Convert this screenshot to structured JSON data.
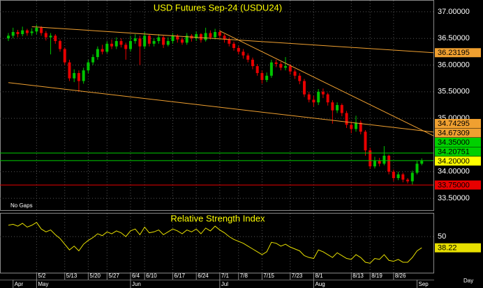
{
  "chart_data": [
    {
      "type": "candlestick",
      "title": "USD Futures Sep-24 (USDU24)",
      "note": "No Gaps",
      "x_unit": "Day",
      "categories": [
        null,
        null,
        null,
        null,
        null,
        null,
        "5/2",
        null,
        null,
        null,
        null,
        null,
        "5/13",
        null,
        null,
        null,
        null,
        "5/20",
        null,
        null,
        null,
        "5/27",
        null,
        null,
        null,
        null,
        "6/4",
        null,
        null,
        "6/10",
        null,
        null,
        null,
        null,
        null,
        "6/17",
        null,
        null,
        null,
        null,
        "6/24",
        null,
        null,
        null,
        null,
        "7/1",
        null,
        null,
        null,
        "7/8",
        null,
        null,
        null,
        null,
        "7/15",
        null,
        null,
        null,
        null,
        null,
        "7/23",
        null,
        null,
        null,
        null,
        "8/1",
        null,
        null,
        null,
        null,
        null,
        null,
        null,
        "8/13",
        null,
        null,
        null,
        "8/19",
        null,
        null,
        null,
        null,
        "8/26",
        null,
        null,
        null,
        null,
        null,
        null
      ],
      "months": [
        null,
        "Apr",
        null,
        null,
        null,
        null,
        "May",
        null,
        null,
        null,
        null,
        null,
        null,
        null,
        null,
        null,
        null,
        null,
        null,
        null,
        null,
        null,
        null,
        null,
        null,
        null,
        "Jun",
        null,
        null,
        null,
        null,
        null,
        null,
        null,
        null,
        null,
        null,
        null,
        null,
        null,
        null,
        null,
        null,
        null,
        null,
        "Jul",
        null,
        null,
        null,
        null,
        null,
        null,
        null,
        null,
        null,
        null,
        null,
        null,
        null,
        null,
        null,
        null,
        null,
        null,
        null,
        "Aug",
        null,
        null,
        null,
        null,
        null,
        null,
        null,
        null,
        null,
        null,
        null,
        null,
        null,
        null,
        null,
        null,
        null,
        null,
        null,
        null,
        null,
        "Sep",
        null
      ],
      "open": [
        36.5,
        36.55,
        36.62,
        36.58,
        36.65,
        36.6,
        36.63,
        36.7,
        36.6,
        36.52,
        36.55,
        36.45,
        36.3,
        36.05,
        35.75,
        35.85,
        35.7,
        35.9,
        36.05,
        36.15,
        36.3,
        36.25,
        36.4,
        36.35,
        36.45,
        36.38,
        36.3,
        36.45,
        36.5,
        36.35,
        36.55,
        36.4,
        36.45,
        36.52,
        36.38,
        36.45,
        36.55,
        36.48,
        36.42,
        36.55,
        36.5,
        36.58,
        36.47,
        36.6,
        36.52,
        36.62,
        36.55,
        36.48,
        36.4,
        36.32,
        36.25,
        36.18,
        36.1,
        35.98,
        35.85,
        35.72,
        35.8,
        36.05,
        36.02,
        35.95,
        35.98,
        35.88,
        35.8,
        35.7,
        35.45,
        35.35,
        35.3,
        35.5,
        35.45,
        35.3,
        35.15,
        35.25,
        35.1,
        34.88,
        34.8,
        34.92,
        34.75,
        34.4,
        34.1,
        34.2,
        34.15,
        34.3,
        34.0,
        33.88,
        33.95,
        33.85,
        33.82,
        33.98,
        34.15
      ],
      "high": [
        36.6,
        36.7,
        36.66,
        36.72,
        36.68,
        36.69,
        36.76,
        36.73,
        36.64,
        36.6,
        36.58,
        36.48,
        36.33,
        36.1,
        35.92,
        35.9,
        35.95,
        36.1,
        36.2,
        36.35,
        36.38,
        36.45,
        36.48,
        36.52,
        36.5,
        36.42,
        36.55,
        36.58,
        36.55,
        36.62,
        36.58,
        36.5,
        36.58,
        36.55,
        36.52,
        36.6,
        36.58,
        36.52,
        36.6,
        36.58,
        36.63,
        36.6,
        36.7,
        36.65,
        36.68,
        36.66,
        36.58,
        36.52,
        36.44,
        36.36,
        36.3,
        36.22,
        36.14,
        36.02,
        35.9,
        35.86,
        36.1,
        36.1,
        36.06,
        36.15,
        36.02,
        35.92,
        35.85,
        35.74,
        35.5,
        35.42,
        35.55,
        35.56,
        35.48,
        35.34,
        35.3,
        35.28,
        35.14,
        34.94,
        35.05,
        34.96,
        34.78,
        34.45,
        34.28,
        34.26,
        34.48,
        34.32,
        34.04,
        34.0,
        33.98,
        33.88,
        34.02,
        34.2,
        34.25
      ],
      "low": [
        36.45,
        36.5,
        36.52,
        36.54,
        36.55,
        36.55,
        36.58,
        36.55,
        36.46,
        36.2,
        36.4,
        36.25,
        36.0,
        35.7,
        35.68,
        35.5,
        35.65,
        35.85,
        36.0,
        36.1,
        36.2,
        36.22,
        36.3,
        36.3,
        36.33,
        36.1,
        36.25,
        36.4,
        36.0,
        36.3,
        36.35,
        36.35,
        36.4,
        36.32,
        36.35,
        36.4,
        36.42,
        36.38,
        36.38,
        36.44,
        36.45,
        36.42,
        36.44,
        36.48,
        36.48,
        36.5,
        36.42,
        36.35,
        36.27,
        36.2,
        36.12,
        36.05,
        35.92,
        35.8,
        35.65,
        35.68,
        35.76,
        35.96,
        35.9,
        35.9,
        35.82,
        35.74,
        35.64,
        35.4,
        35.3,
        35.22,
        35.25,
        35.38,
        35.24,
        34.9,
        35.1,
        35.04,
        34.82,
        34.72,
        34.75,
        34.7,
        34.3,
        34.05,
        34.06,
        34.1,
        34.12,
        33.95,
        33.82,
        33.84,
        33.8,
        33.78,
        33.76,
        33.95,
        34.12
      ],
      "close": [
        36.55,
        36.62,
        36.58,
        36.65,
        36.6,
        36.63,
        36.7,
        36.6,
        36.52,
        36.55,
        36.45,
        36.3,
        36.05,
        35.75,
        35.85,
        35.7,
        35.9,
        36.05,
        36.15,
        36.3,
        36.25,
        36.4,
        36.35,
        36.45,
        36.38,
        36.3,
        36.45,
        36.5,
        36.35,
        36.55,
        36.4,
        36.45,
        36.52,
        36.38,
        36.45,
        36.55,
        36.48,
        36.42,
        36.55,
        36.5,
        36.58,
        36.47,
        36.6,
        36.52,
        36.62,
        36.55,
        36.48,
        36.4,
        36.32,
        36.25,
        36.18,
        36.1,
        35.98,
        35.85,
        35.72,
        35.8,
        36.05,
        36.02,
        35.95,
        35.98,
        35.88,
        35.8,
        35.7,
        35.45,
        35.35,
        35.3,
        35.5,
        35.45,
        35.3,
        35.15,
        35.25,
        35.1,
        34.88,
        34.8,
        34.92,
        34.75,
        34.4,
        34.1,
        34.2,
        34.15,
        34.3,
        34.0,
        33.88,
        33.95,
        33.85,
        33.82,
        33.98,
        34.15,
        34.2
      ],
      "last_close_label": "34.20000",
      "up_color": "#00c400",
      "down_color": "#e80000",
      "ylim": [
        33.28,
        37.22
      ],
      "yticks": [
        {
          "value": 37,
          "label": "37.00000"
        },
        {
          "value": 36.5,
          "label": "36.50000"
        },
        {
          "value": 36,
          "label": "36.00000"
        },
        {
          "value": 35.5,
          "label": "35.50000"
        },
        {
          "value": 35,
          "label": "35.00000"
        },
        {
          "value": 34,
          "label": "34.00000"
        },
        {
          "value": 33.5,
          "label": "33.50000"
        }
      ],
      "grid": true,
      "trendlines": [
        {
          "from_index": 5,
          "from_value": 36.72,
          "to_value": 36.23195,
          "label": "36.23195",
          "color": "#f0a030"
        },
        {
          "from_index": 0,
          "from_value": 35.67,
          "to_value": 34.74295,
          "label": "34.74295",
          "color": "#f0a030"
        },
        {
          "from_index": 45,
          "from_value": 36.64,
          "to_value": 34.67309,
          "label": "34.67309",
          "color": "#f0a030"
        }
      ],
      "hlines": [
        {
          "value": 34.35,
          "label": "34.35000",
          "color": "#00d000"
        },
        {
          "value": 34.20751,
          "label": "34.20751",
          "color": "#00d000"
        },
        {
          "value": 33.75,
          "label": "33.75000",
          "color": "#e80000"
        }
      ],
      "last_color": "#ffff00"
    },
    {
      "type": "line",
      "title": "Relative Strength Index",
      "color": "#e8e000",
      "values": [
        62,
        63,
        61,
        64,
        60,
        62,
        65,
        58,
        55,
        57,
        52,
        48,
        42,
        36,
        40,
        35,
        42,
        46,
        49,
        53,
        51,
        55,
        53,
        56,
        54,
        50,
        56,
        58,
        52,
        60,
        54,
        55,
        57,
        52,
        55,
        58,
        56,
        53,
        57,
        55,
        58,
        53,
        59,
        56,
        61,
        57,
        54,
        50,
        47,
        45,
        43,
        40,
        37,
        34,
        31,
        34,
        44,
        43,
        40,
        42,
        39,
        37,
        35,
        30,
        28,
        27,
        36,
        34,
        31,
        28,
        33,
        30,
        27,
        26,
        31,
        28,
        23,
        22,
        27,
        26,
        31,
        25,
        24,
        26,
        23,
        23,
        28,
        35,
        38.22
      ],
      "ylim": [
        12,
        75
      ],
      "yticks": [
        50
      ]
    }
  ]
}
